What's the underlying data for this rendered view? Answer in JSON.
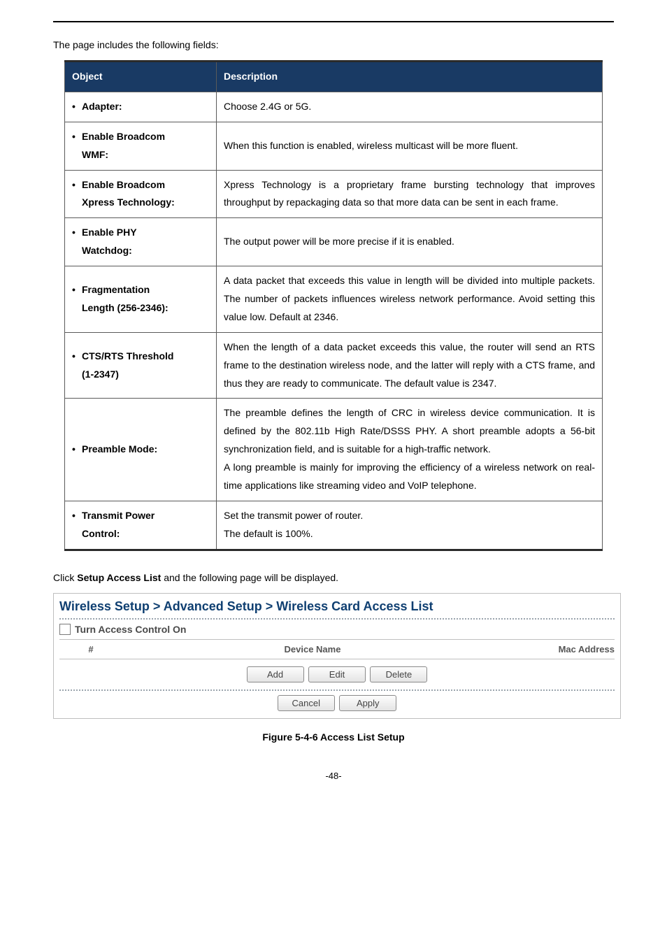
{
  "intro": "The page includes the following fields:",
  "table": {
    "headers": {
      "object": "Object",
      "description": "Description"
    },
    "rows": [
      {
        "object_lines": [
          "Adapter:"
        ],
        "description": "Choose 2.4G or 5G."
      },
      {
        "object_lines": [
          "Enable Broadcom",
          "WMF:"
        ],
        "description": "When this function is enabled, wireless multicast will be more fluent."
      },
      {
        "object_lines": [
          "Enable Broadcom",
          "Xpress Technology:"
        ],
        "description": "Xpress Technology is a proprietary frame bursting technology that improves throughput by repackaging data so that more data can be sent in each frame."
      },
      {
        "object_lines": [
          "Enable PHY",
          "Watchdog:"
        ],
        "description": "The output power will be more precise if it is enabled."
      },
      {
        "object_lines": [
          "Fragmentation",
          "Length (256-2346):"
        ],
        "description": "A data packet that exceeds this value in length will be divided into multiple packets. The number of packets influences wireless network performance. Avoid setting this value low. Default at 2346."
      },
      {
        "object_lines": [
          "CTS/RTS Threshold",
          "(1-2347)"
        ],
        "description": "When the length of a data packet exceeds this value, the router will send an RTS frame to the destination wireless node, and the latter will reply with a CTS frame, and thus they are ready to communicate. The default value is 2347."
      },
      {
        "object_lines": [
          "Preamble Mode:"
        ],
        "description": "The preamble defines the length of CRC in wireless device communication. It is defined by the 802.11b High Rate/DSSS PHY. A short preamble adopts a 56-bit synchronization field, and is suitable for a high-traffic network.\nA long preamble is mainly for improving the efficiency of a wireless network on real-time applications like streaming video and VoIP telephone."
      },
      {
        "object_lines": [
          "Transmit Power",
          "Control:"
        ],
        "description": "Set the transmit power of router.\nThe default is 100%."
      }
    ]
  },
  "click_line": {
    "pre": "Click ",
    "bold": "Setup Access List",
    "post": " and the following page will be displayed."
  },
  "panel": {
    "breadcrumb": "Wireless Setup > Advanced Setup > Wireless Card Access List",
    "access_label": "Turn Access Control On",
    "columns": {
      "num": "#",
      "device": "Device Name",
      "mac": "Mac Address"
    },
    "buttons": {
      "add": "Add",
      "edit": "Edit",
      "del": "Delete",
      "cancel": "Cancel",
      "apply": "Apply"
    }
  },
  "figure_caption": "Figure 5-4-6 Access List Setup",
  "page_number": "-48-"
}
